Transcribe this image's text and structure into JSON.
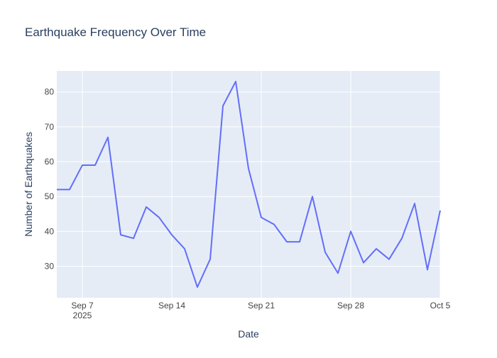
{
  "chart_data": {
    "type": "line",
    "title": "Earthquake Frequency Over Time",
    "xlabel": "Date",
    "ylabel": "Number of Earthquakes",
    "x": [
      "2025-09-05",
      "2025-09-06",
      "2025-09-07",
      "2025-09-08",
      "2025-09-09",
      "2025-09-10",
      "2025-09-11",
      "2025-09-12",
      "2025-09-13",
      "2025-09-14",
      "2025-09-15",
      "2025-09-16",
      "2025-09-17",
      "2025-09-18",
      "2025-09-19",
      "2025-09-20",
      "2025-09-21",
      "2025-09-22",
      "2025-09-23",
      "2025-09-24",
      "2025-09-25",
      "2025-09-26",
      "2025-09-27",
      "2025-09-28",
      "2025-09-29",
      "2025-09-30",
      "2025-10-01",
      "2025-10-02",
      "2025-10-03",
      "2025-10-04",
      "2025-10-05"
    ],
    "series": [
      {
        "values": [
          52,
          52,
          59,
          59,
          67,
          39,
          38,
          47,
          44,
          39,
          35,
          24,
          32,
          76,
          83,
          58,
          44,
          42,
          37,
          37,
          50,
          34,
          28,
          40,
          31,
          35,
          32,
          38,
          48,
          29,
          46
        ]
      }
    ],
    "xlim": [
      "2025-09-05",
      "2025-10-05"
    ],
    "ylim": [
      20.95,
      86.05
    ],
    "x_ticks": [
      {
        "date": "2025-09-07",
        "label": "Sep 7",
        "sublabel": "2025"
      },
      {
        "date": "2025-09-14",
        "label": "Sep 14",
        "sublabel": ""
      },
      {
        "date": "2025-09-21",
        "label": "Sep 21",
        "sublabel": ""
      },
      {
        "date": "2025-09-28",
        "label": "Sep 28",
        "sublabel": ""
      },
      {
        "date": "2025-10-05",
        "label": "Oct 5",
        "sublabel": ""
      }
    ],
    "y_ticks": [
      30,
      40,
      50,
      60,
      70,
      80
    ],
    "grid": true,
    "colors": {
      "line": "#636efa",
      "plot_background": "#e5ecf6",
      "grid": "#ffffff",
      "text": "#2a3f5f",
      "tick_text": "#444444"
    }
  }
}
